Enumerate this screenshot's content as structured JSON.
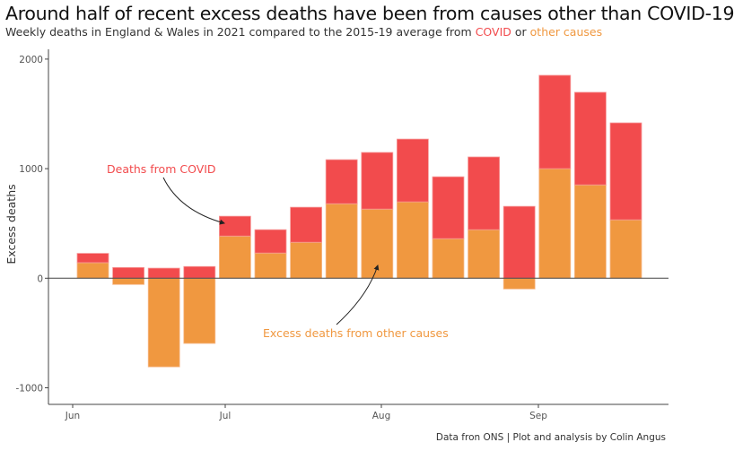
{
  "title": "Around half of recent excess deaths have been from causes other than COVID-19",
  "subtitle": {
    "before": "Weekly deaths in England & Wales in 2021 compared to the 2015-19 average from ",
    "covid": "COVID",
    "mid": " or ",
    "other": "other causes"
  },
  "caption": "Data fron ONS | Plot and analysis by Colin Angus",
  "colors": {
    "covid": "#f24b4d",
    "other": "#f09840"
  },
  "chart_data": {
    "type": "bar",
    "stacked": true,
    "ylabel": "Excess deaths",
    "ylim": [
      -1150,
      2200
    ],
    "yticks": [
      -1000,
      0,
      1000,
      2000
    ],
    "ytick_labels": [
      "-1000",
      "0",
      "1000",
      "2000"
    ],
    "xticks": [
      "Jun",
      "Jul",
      "Aug",
      "Sep"
    ],
    "grid": false,
    "series": [
      {
        "name": "Excess deaths from other causes",
        "values": [
          142,
          -57,
          -809,
          -595,
          385,
          230,
          328,
          680,
          631,
          697,
          361,
          443,
          -98,
          1000,
          852,
          533
        ]
      },
      {
        "name": "Deaths from COVID",
        "values": [
          85,
          98,
          92,
          107,
          181,
          213,
          320,
          402,
          517,
          573,
          565,
          664,
          656,
          852,
          845,
          885
        ]
      }
    ],
    "annotations": [
      {
        "text": "Deaths from COVID",
        "series": "covid"
      },
      {
        "text": "Excess deaths from other causes",
        "series": "other"
      }
    ]
  }
}
